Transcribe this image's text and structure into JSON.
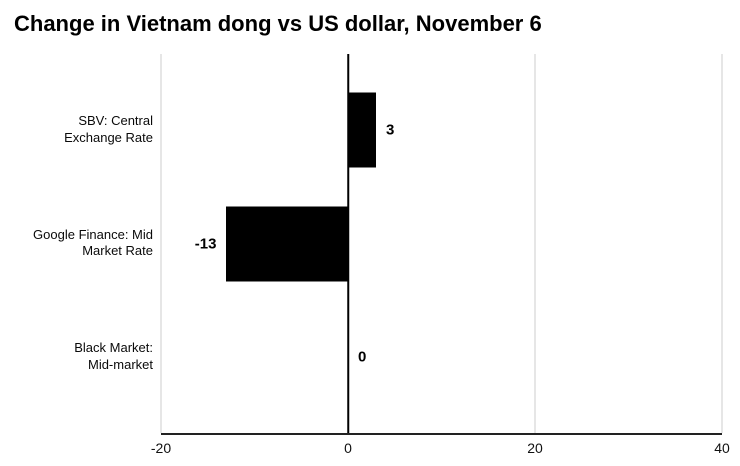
{
  "title": "Change in Vietnam dong vs US dollar, November 6",
  "colors": {
    "bar": "#000000",
    "grid": "#cccccc",
    "zero_line": "#000000",
    "axis_line": "#222222",
    "text": "#000000"
  },
  "chart_data": {
    "type": "bar",
    "orientation": "horizontal",
    "title": "Change in Vietnam dong vs US dollar, November 6",
    "categories": [
      "SBV: Central\nExchange Rate",
      "Google Finance: Mid\nMarket Rate",
      "Black Market:\nMid-market"
    ],
    "values": [
      3,
      -13,
      0
    ],
    "value_labels": [
      "3",
      "-13",
      "0"
    ],
    "xlabel": "",
    "ylabel": "",
    "xlim": [
      -20,
      40
    ],
    "xticks": [
      -20,
      0,
      20,
      40
    ],
    "grid": "vertical",
    "legend": false
  }
}
